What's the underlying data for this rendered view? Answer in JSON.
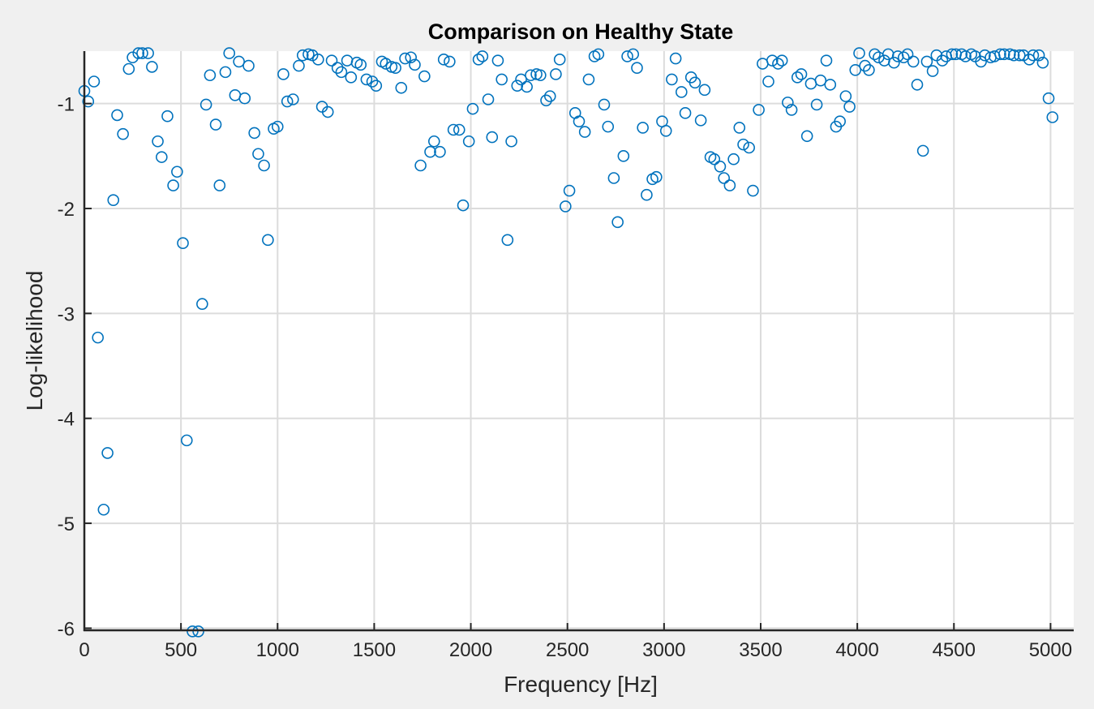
{
  "chart_data": {
    "type": "scatter",
    "title": "Comparison on Healthy State",
    "xlabel": "Frequency [Hz]",
    "ylabel": "Log-likelihood",
    "xlim": [
      0,
      5120
    ],
    "ylim": [
      -6.02,
      -0.5
    ],
    "xticks": [
      0,
      500,
      1000,
      1500,
      2000,
      2500,
      3000,
      3500,
      4000,
      4500,
      5000
    ],
    "xtick_labels": [
      "0",
      "500",
      "1000",
      "1500",
      "2000",
      "2500",
      "3000",
      "3500",
      "4000",
      "4500",
      "5000"
    ],
    "yticks": [
      -1,
      -2,
      -3,
      -4,
      -5,
      -6
    ],
    "ytick_labels": [
      "-1",
      "-2",
      "-3",
      "-4",
      "-5",
      "-6"
    ],
    "grid": true,
    "legend": "none",
    "marker": "open-circle",
    "marker_color": "#0072bd",
    "points": [
      [
        0,
        -0.88
      ],
      [
        20,
        -0.98
      ],
      [
        50,
        -0.79
      ],
      [
        70,
        -3.23
      ],
      [
        100,
        -4.87
      ],
      [
        120,
        -4.33
      ],
      [
        150,
        -1.92
      ],
      [
        170,
        -1.11
      ],
      [
        200,
        -1.29
      ],
      [
        230,
        -0.67
      ],
      [
        250,
        -0.56
      ],
      [
        280,
        -0.52
      ],
      [
        300,
        -0.52
      ],
      [
        330,
        -0.52
      ],
      [
        350,
        -0.65
      ],
      [
        380,
        -1.36
      ],
      [
        400,
        -1.51
      ],
      [
        430,
        -1.12
      ],
      [
        460,
        -1.78
      ],
      [
        480,
        -1.65
      ],
      [
        510,
        -2.33
      ],
      [
        530,
        -4.21
      ],
      [
        560,
        -6.03
      ],
      [
        590,
        -6.03
      ],
      [
        610,
        -2.91
      ],
      [
        630,
        -1.01
      ],
      [
        650,
        -0.73
      ],
      [
        680,
        -1.2
      ],
      [
        700,
        -1.78
      ],
      [
        730,
        -0.7
      ],
      [
        750,
        -0.52
      ],
      [
        780,
        -0.92
      ],
      [
        800,
        -0.6
      ],
      [
        830,
        -0.95
      ],
      [
        850,
        -0.64
      ],
      [
        880,
        -1.28
      ],
      [
        900,
        -1.48
      ],
      [
        930,
        -1.59
      ],
      [
        950,
        -2.3
      ],
      [
        980,
        -1.24
      ],
      [
        1000,
        -1.22
      ],
      [
        1030,
        -0.72
      ],
      [
        1050,
        -0.98
      ],
      [
        1080,
        -0.96
      ],
      [
        1110,
        -0.64
      ],
      [
        1130,
        -0.54
      ],
      [
        1160,
        -0.53
      ],
      [
        1180,
        -0.54
      ],
      [
        1210,
        -0.58
      ],
      [
        1230,
        -1.03
      ],
      [
        1260,
        -1.08
      ],
      [
        1280,
        -0.59
      ],
      [
        1310,
        -0.66
      ],
      [
        1330,
        -0.7
      ],
      [
        1360,
        -0.59
      ],
      [
        1380,
        -0.75
      ],
      [
        1410,
        -0.61
      ],
      [
        1430,
        -0.63
      ],
      [
        1460,
        -0.77
      ],
      [
        1490,
        -0.79
      ],
      [
        1510,
        -0.83
      ],
      [
        1540,
        -0.6
      ],
      [
        1560,
        -0.62
      ],
      [
        1590,
        -0.65
      ],
      [
        1610,
        -0.66
      ],
      [
        1640,
        -0.85
      ],
      [
        1660,
        -0.57
      ],
      [
        1690,
        -0.56
      ],
      [
        1710,
        -0.63
      ],
      [
        1740,
        -1.59
      ],
      [
        1760,
        -0.74
      ],
      [
        1790,
        -1.46
      ],
      [
        1810,
        -1.36
      ],
      [
        1840,
        -1.46
      ],
      [
        1860,
        -0.58
      ],
      [
        1890,
        -0.6
      ],
      [
        1910,
        -1.25
      ],
      [
        1940,
        -1.25
      ],
      [
        1960,
        -1.97
      ],
      [
        1990,
        -1.36
      ],
      [
        2010,
        -1.05
      ],
      [
        2040,
        -0.58
      ],
      [
        2060,
        -0.55
      ],
      [
        2090,
        -0.96
      ],
      [
        2110,
        -1.32
      ],
      [
        2140,
        -0.59
      ],
      [
        2160,
        -0.77
      ],
      [
        2190,
        -2.3
      ],
      [
        2210,
        -1.36
      ],
      [
        2240,
        -0.83
      ],
      [
        2260,
        -0.77
      ],
      [
        2290,
        -0.84
      ],
      [
        2310,
        -0.73
      ],
      [
        2340,
        -0.72
      ],
      [
        2360,
        -0.73
      ],
      [
        2390,
        -0.97
      ],
      [
        2410,
        -0.93
      ],
      [
        2440,
        -0.72
      ],
      [
        2460,
        -0.58
      ],
      [
        2490,
        -1.98
      ],
      [
        2510,
        -1.83
      ],
      [
        2540,
        -1.09
      ],
      [
        2560,
        -1.17
      ],
      [
        2590,
        -1.27
      ],
      [
        2610,
        -0.77
      ],
      [
        2640,
        -0.55
      ],
      [
        2660,
        -0.53
      ],
      [
        2690,
        -1.01
      ],
      [
        2710,
        -1.22
      ],
      [
        2740,
        -1.71
      ],
      [
        2760,
        -2.13
      ],
      [
        2790,
        -1.5
      ],
      [
        2810,
        -0.55
      ],
      [
        2840,
        -0.53
      ],
      [
        2860,
        -0.66
      ],
      [
        2890,
        -1.23
      ],
      [
        2910,
        -1.87
      ],
      [
        2940,
        -1.72
      ],
      [
        2960,
        -1.7
      ],
      [
        2990,
        -1.17
      ],
      [
        3010,
        -1.26
      ],
      [
        3040,
        -0.77
      ],
      [
        3060,
        -0.57
      ],
      [
        3090,
        -0.89
      ],
      [
        3110,
        -1.09
      ],
      [
        3140,
        -0.75
      ],
      [
        3160,
        -0.8
      ],
      [
        3190,
        -1.16
      ],
      [
        3210,
        -0.87
      ],
      [
        3240,
        -1.51
      ],
      [
        3260,
        -1.53
      ],
      [
        3290,
        -1.6
      ],
      [
        3310,
        -1.71
      ],
      [
        3340,
        -1.78
      ],
      [
        3360,
        -1.53
      ],
      [
        3390,
        -1.23
      ],
      [
        3410,
        -1.39
      ],
      [
        3440,
        -1.42
      ],
      [
        3460,
        -1.83
      ],
      [
        3490,
        -1.06
      ],
      [
        3510,
        -0.62
      ],
      [
        3540,
        -0.79
      ],
      [
        3560,
        -0.59
      ],
      [
        3590,
        -0.62
      ],
      [
        3610,
        -0.59
      ],
      [
        3640,
        -0.99
      ],
      [
        3660,
        -1.06
      ],
      [
        3690,
        -0.75
      ],
      [
        3710,
        -0.72
      ],
      [
        3740,
        -1.31
      ],
      [
        3760,
        -0.81
      ],
      [
        3790,
        -1.01
      ],
      [
        3810,
        -0.78
      ],
      [
        3840,
        -0.59
      ],
      [
        3860,
        -0.82
      ],
      [
        3890,
        -1.22
      ],
      [
        3910,
        -1.17
      ],
      [
        3940,
        -0.93
      ],
      [
        3960,
        -1.03
      ],
      [
        3990,
        -0.68
      ],
      [
        4010,
        -0.52
      ],
      [
        4040,
        -0.64
      ],
      [
        4060,
        -0.68
      ],
      [
        4090,
        -0.53
      ],
      [
        4110,
        -0.56
      ],
      [
        4140,
        -0.59
      ],
      [
        4160,
        -0.53
      ],
      [
        4190,
        -0.61
      ],
      [
        4210,
        -0.55
      ],
      [
        4240,
        -0.56
      ],
      [
        4260,
        -0.53
      ],
      [
        4290,
        -0.6
      ],
      [
        4310,
        -0.82
      ],
      [
        4340,
        -1.45
      ],
      [
        4360,
        -0.6
      ],
      [
        4390,
        -0.69
      ],
      [
        4410,
        -0.54
      ],
      [
        4440,
        -0.59
      ],
      [
        4460,
        -0.55
      ],
      [
        4490,
        -0.53
      ],
      [
        4510,
        -0.53
      ],
      [
        4540,
        -0.53
      ],
      [
        4560,
        -0.55
      ],
      [
        4590,
        -0.53
      ],
      [
        4610,
        -0.55
      ],
      [
        4640,
        -0.6
      ],
      [
        4660,
        -0.54
      ],
      [
        4690,
        -0.56
      ],
      [
        4710,
        -0.55
      ],
      [
        4740,
        -0.53
      ],
      [
        4760,
        -0.53
      ],
      [
        4790,
        -0.53
      ],
      [
        4810,
        -0.54
      ],
      [
        4840,
        -0.54
      ],
      [
        4860,
        -0.54
      ],
      [
        4890,
        -0.58
      ],
      [
        4910,
        -0.54
      ],
      [
        4940,
        -0.54
      ],
      [
        4960,
        -0.61
      ],
      [
        4990,
        -0.95
      ],
      [
        5010,
        -1.13
      ]
    ]
  }
}
